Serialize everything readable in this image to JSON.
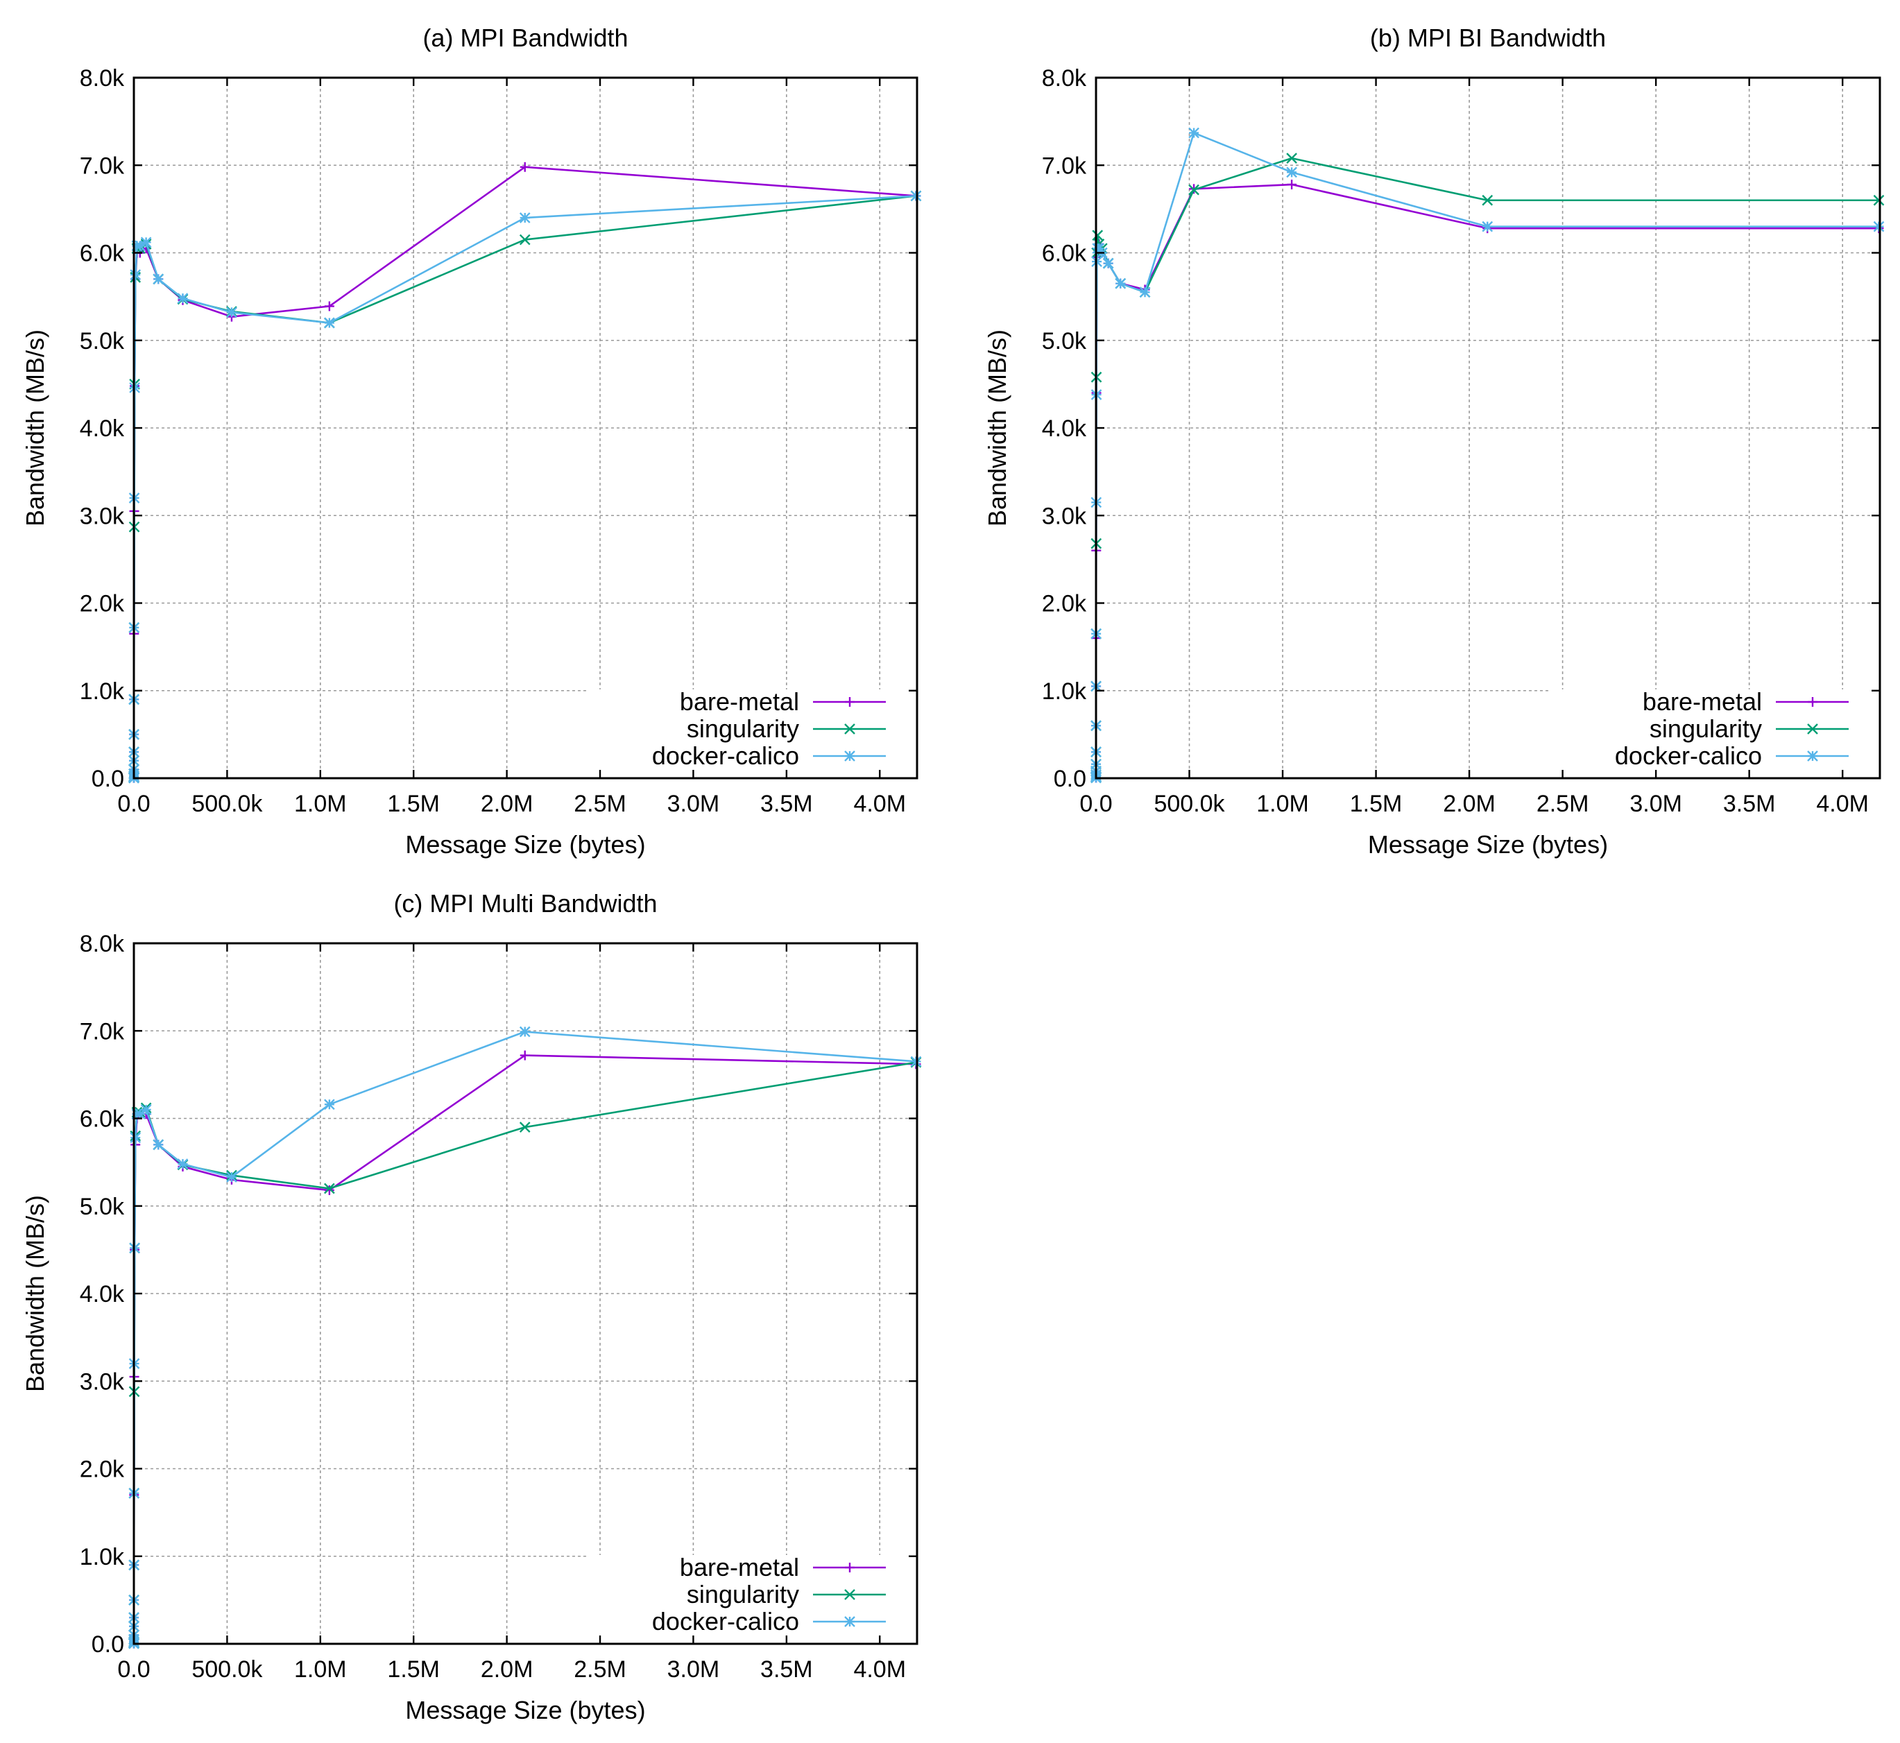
{
  "chart_data": [
    {
      "type": "line",
      "title": "(a) MPI Bandwidth",
      "xlabel": "Message Size (bytes)",
      "ylabel": "Bandwidth (MB/s)",
      "xlim": [
        0,
        4200000
      ],
      "ylim": [
        0,
        8000
      ],
      "grid": true,
      "legend_position": "bottom-right",
      "x_ticks": [
        0,
        500000,
        1000000,
        1500000,
        2000000,
        2500000,
        3000000,
        3500000,
        4000000
      ],
      "x_tick_labels": [
        "0.0",
        "500.0k",
        "1.0M",
        "1.5M",
        "2.0M",
        "2.5M",
        "3.0M",
        "3.5M",
        "4.0M"
      ],
      "y_ticks": [
        0,
        1000,
        2000,
        3000,
        4000,
        5000,
        6000,
        7000,
        8000
      ],
      "y_tick_labels": [
        "0.0",
        "1.0k",
        "2.0k",
        "3.0k",
        "4.0k",
        "5.0k",
        "6.0k",
        "7.0k",
        "8.0k"
      ],
      "x": [
        1,
        2,
        4,
        8,
        16,
        32,
        64,
        128,
        256,
        512,
        1024,
        2048,
        4096,
        8192,
        16384,
        32768,
        65536,
        131072,
        262144,
        524288,
        1048576,
        2097152,
        4194304
      ],
      "series": [
        {
          "name": "bare-metal",
          "color": "#9400d3",
          "marker": "plus",
          "values": [
            3,
            6,
            12,
            25,
            50,
            100,
            200,
            300,
            500,
            900,
            1650,
            3050,
            4480,
            5700,
            6000,
            6000,
            6050,
            5700,
            5460,
            5270,
            5390,
            6980,
            6650
          ]
        },
        {
          "name": "singularity",
          "color": "#009e73",
          "marker": "cross",
          "values": [
            3,
            6,
            12,
            25,
            50,
            100,
            200,
            300,
            500,
            900,
            1720,
            2870,
            4500,
            5720,
            6050,
            6050,
            6100,
            5700,
            5470,
            5330,
            5200,
            6150,
            6650
          ]
        },
        {
          "name": "docker-calico",
          "color": "#56b4e9",
          "marker": "star",
          "values": [
            3,
            6,
            12,
            25,
            50,
            100,
            200,
            300,
            500,
            900,
            1720,
            3200,
            4460,
            5750,
            6080,
            6080,
            6120,
            5700,
            5480,
            5320,
            5200,
            6400,
            6650
          ]
        }
      ]
    },
    {
      "type": "line",
      "title": "(b) MPI BI Bandwidth",
      "xlabel": "Message Size (bytes)",
      "ylabel": "Bandwidth (MB/s)",
      "xlim": [
        0,
        4200000
      ],
      "ylim": [
        0,
        8000
      ],
      "grid": true,
      "legend_position": "bottom-right",
      "x_ticks": [
        0,
        500000,
        1000000,
        1500000,
        2000000,
        2500000,
        3000000,
        3500000,
        4000000
      ],
      "x_tick_labels": [
        "0.0",
        "500.0k",
        "1.0M",
        "1.5M",
        "2.0M",
        "2.5M",
        "3.0M",
        "3.5M",
        "4.0M"
      ],
      "y_ticks": [
        0,
        1000,
        2000,
        3000,
        4000,
        5000,
        6000,
        7000,
        8000
      ],
      "y_tick_labels": [
        "0.0",
        "1.0k",
        "2.0k",
        "3.0k",
        "4.0k",
        "5.0k",
        "6.0k",
        "7.0k",
        "8.0k"
      ],
      "x": [
        1,
        2,
        4,
        8,
        16,
        32,
        64,
        128,
        256,
        512,
        1024,
        2048,
        4096,
        8192,
        16384,
        32768,
        65536,
        131072,
        262144,
        524288,
        1048576,
        2097152,
        4194304
      ],
      "series": [
        {
          "name": "bare-metal",
          "color": "#9400d3",
          "marker": "plus",
          "values": [
            5,
            10,
            20,
            40,
            80,
            160,
            300,
            600,
            1050,
            1600,
            2600,
            4400,
            5950,
            6050,
            6100,
            6000,
            5880,
            5650,
            5580,
            6730,
            6780,
            6280,
            6280
          ]
        },
        {
          "name": "singularity",
          "color": "#009e73",
          "marker": "cross",
          "values": [
            5,
            10,
            20,
            40,
            80,
            160,
            300,
            600,
            1050,
            1650,
            2680,
            4580,
            6000,
            6200,
            6100,
            6050,
            5880,
            5650,
            5550,
            6720,
            7080,
            6600,
            6600
          ]
        },
        {
          "name": "docker-calico",
          "color": "#56b4e9",
          "marker": "star",
          "values": [
            5,
            10,
            20,
            40,
            80,
            160,
            300,
            600,
            1050,
            1650,
            3150,
            4380,
            5900,
            6050,
            6050,
            6000,
            5880,
            5650,
            5550,
            7370,
            6920,
            6300,
            6300
          ]
        }
      ]
    },
    {
      "type": "line",
      "title": "(c) MPI Multi Bandwidth",
      "xlabel": "Message Size (bytes)",
      "ylabel": "Bandwidth (MB/s)",
      "xlim": [
        0,
        4200000
      ],
      "ylim": [
        0,
        8000
      ],
      "grid": true,
      "legend_position": "bottom-right",
      "x_ticks": [
        0,
        500000,
        1000000,
        1500000,
        2000000,
        2500000,
        3000000,
        3500000,
        4000000
      ],
      "x_tick_labels": [
        "0.0",
        "500.0k",
        "1.0M",
        "1.5M",
        "2.0M",
        "2.5M",
        "3.0M",
        "3.5M",
        "4.0M"
      ],
      "y_ticks": [
        0,
        1000,
        2000,
        3000,
        4000,
        5000,
        6000,
        7000,
        8000
      ],
      "y_tick_labels": [
        "0.0",
        "1.0k",
        "2.0k",
        "3.0k",
        "4.0k",
        "5.0k",
        "6.0k",
        "7.0k",
        "8.0k"
      ],
      "x": [
        1,
        2,
        4,
        8,
        16,
        32,
        64,
        128,
        256,
        512,
        1024,
        2048,
        4096,
        8192,
        16384,
        32768,
        65536,
        131072,
        262144,
        524288,
        1048576,
        2097152,
        4194304
      ],
      "series": [
        {
          "name": "bare-metal",
          "color": "#9400d3",
          "marker": "plus",
          "values": [
            3,
            6,
            12,
            25,
            50,
            100,
            200,
            300,
            500,
            900,
            1700,
            3050,
            4500,
            5700,
            6000,
            6050,
            6050,
            5700,
            5450,
            5300,
            5180,
            6720,
            6620
          ]
        },
        {
          "name": "singularity",
          "color": "#009e73",
          "marker": "cross",
          "values": [
            3,
            6,
            12,
            25,
            50,
            100,
            200,
            300,
            500,
            900,
            1720,
            2880,
            4520,
            5800,
            6070,
            6070,
            6120,
            5700,
            5470,
            5350,
            5200,
            5900,
            6640
          ]
        },
        {
          "name": "docker-calico",
          "color": "#56b4e9",
          "marker": "star",
          "values": [
            3,
            6,
            12,
            25,
            50,
            100,
            200,
            300,
            500,
            900,
            1720,
            3200,
            4520,
            5780,
            6050,
            6050,
            6100,
            5700,
            5480,
            5330,
            6160,
            6990,
            6650
          ]
        }
      ]
    }
  ]
}
